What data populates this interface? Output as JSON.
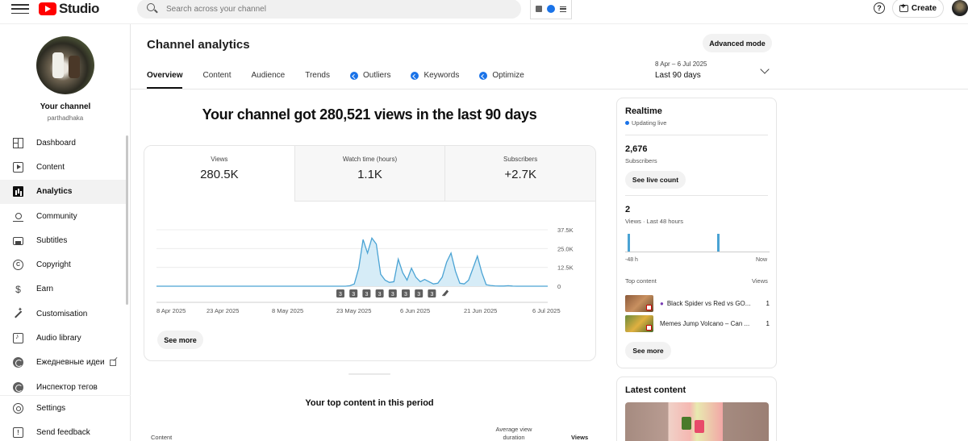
{
  "app": {
    "logo_text": "Studio",
    "search_placeholder": "Search across your channel",
    "create_label": "Create",
    "help_label": "?"
  },
  "sidebar": {
    "channel_name": "Your channel",
    "channel_handle": "parthadhaka",
    "items": [
      {
        "label": "Dashboard",
        "icon": "dashboard-icon"
      },
      {
        "label": "Content",
        "icon": "content-icon"
      },
      {
        "label": "Analytics",
        "icon": "analytics-icon",
        "active": true
      },
      {
        "label": "Community",
        "icon": "community-icon"
      },
      {
        "label": "Subtitles",
        "icon": "subtitles-icon"
      },
      {
        "label": "Copyright",
        "icon": "copyright-icon"
      },
      {
        "label": "Earn",
        "icon": "earn-icon"
      },
      {
        "label": "Customisation",
        "icon": "customisation-icon"
      },
      {
        "label": "Audio library",
        "icon": "audio-library-icon"
      },
      {
        "label": "Ежедневные идеи",
        "icon": "extension-icon"
      },
      {
        "label": "Инспектор тегов",
        "icon": "extension-icon"
      }
    ],
    "bottom": [
      {
        "label": "Settings",
        "icon": "settings-icon"
      },
      {
        "label": "Send feedback",
        "icon": "feedback-icon"
      }
    ]
  },
  "header": {
    "title": "Channel analytics",
    "advanced_mode": "Advanced mode",
    "tabs": [
      {
        "label": "Overview",
        "active": true
      },
      {
        "label": "Content"
      },
      {
        "label": "Audience"
      },
      {
        "label": "Trends"
      },
      {
        "label": "Outliers",
        "badge": true
      },
      {
        "label": "Keywords",
        "badge": true
      },
      {
        "label": "Optimize",
        "badge": true
      }
    ],
    "date_range_small": "8 Apr – 6 Jul 2025",
    "date_range_label": "Last 90 days"
  },
  "overview": {
    "headline": "Your channel got 280,521 views in the last 90 days",
    "metrics": [
      {
        "label": "Views",
        "value": "280.5K"
      },
      {
        "label": "Watch time (hours)",
        "value": "1.1K"
      },
      {
        "label": "Subscribers",
        "value": "+2.7K"
      }
    ],
    "see_more": "See more",
    "top_content_title": "Your top content in this period",
    "table_headers": {
      "content": "Content",
      "avg_view": "Average view duration",
      "views": "Views"
    }
  },
  "chart_data": {
    "type": "area",
    "x_labels": [
      "8 Apr 2025",
      "23 Apr 2025",
      "8 May 2025",
      "23 May 2025",
      "6 Jun 2025",
      "21 Jun 2025",
      "6 Jul 2025"
    ],
    "y_ticks": [
      "37.5K",
      "25.0K",
      "12.5K",
      "0"
    ],
    "ylim": [
      0,
      37500
    ],
    "values": [
      0,
      0,
      0,
      0,
      0,
      0,
      0,
      0,
      0,
      0,
      0,
      0,
      0,
      0,
      0,
      0,
      0,
      0,
      0,
      0,
      0,
      0,
      0,
      0,
      0,
      0,
      0,
      0,
      0,
      0,
      0,
      0,
      0,
      0,
      0,
      0,
      0,
      0,
      0,
      0,
      0,
      0,
      0,
      0,
      300,
      1500,
      12000,
      31000,
      22000,
      32000,
      28000,
      8000,
      4000,
      2500,
      3000,
      18000,
      9000,
      4000,
      12000,
      6000,
      3000,
      4500,
      3000,
      1500,
      2000,
      6000,
      16000,
      22000,
      10000,
      2000,
      1500,
      4000,
      12000,
      20000,
      9000,
      1000,
      500,
      200,
      100,
      100,
      300,
      100,
      0,
      0,
      0,
      0,
      0,
      0,
      0,
      0
    ],
    "markers": [
      "3",
      "3",
      "3",
      "3",
      "3",
      "3",
      "3",
      "3",
      "3"
    ],
    "color": "#4aa3d4"
  },
  "realtime": {
    "title": "Realtime",
    "status": "Updating live",
    "subscribers_value": "2,676",
    "subscribers_label": "Subscribers",
    "live_count_btn": "See live count",
    "views_value": "2",
    "views_label": "Views · Last 48 hours",
    "axis_left": "-48 h",
    "axis_right": "Now",
    "bars": [
      1,
      1
    ],
    "top_content_label": "Top content",
    "views_col": "Views",
    "items": [
      {
        "title": "Black Spider vs Red vs GO...",
        "views": "1"
      },
      {
        "title": "Memes Jump Volcano – Can ...",
        "views": "1"
      }
    ],
    "see_more": "See more"
  },
  "latest": {
    "title": "Latest content"
  }
}
